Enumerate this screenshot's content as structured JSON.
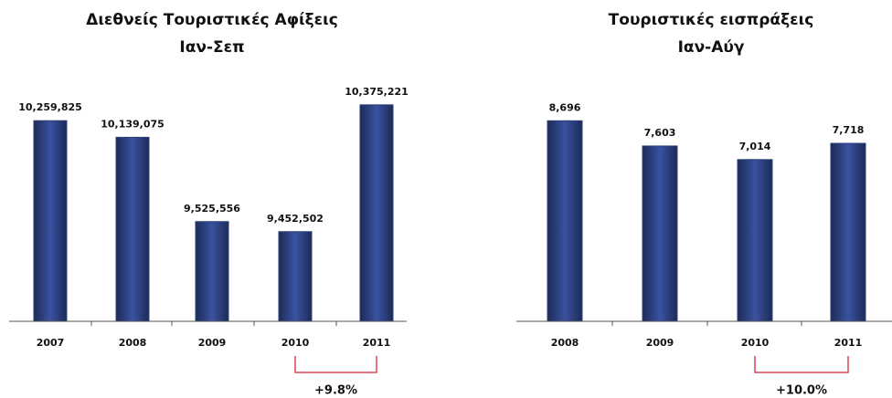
{
  "chart_data": [
    {
      "type": "bar",
      "title": "Διεθνείς Τουριστικές Αφίξεις",
      "subtitle": "Ιαν-Σεπ",
      "categories": [
        "2007",
        "2008",
        "2009",
        "2010",
        "2011"
      ],
      "values": [
        10259825,
        10139075,
        9525556,
        9452502,
        10375221
      ],
      "value_labels": [
        "10,259,825",
        "10,139,075",
        "9,525,556",
        "9,452,502",
        "10,375,221"
      ],
      "color": "#2b3f78",
      "ylim": [
        8800000,
        10600000
      ],
      "annotation": "+9.8%"
    },
    {
      "type": "bar",
      "title": "Τουριστικές εισπράξεις",
      "subtitle": "Ιαν-Αύγ",
      "categories": [
        "2008",
        "2009",
        "2010",
        "2011"
      ],
      "values": [
        8696,
        7603,
        7014,
        7718
      ],
      "value_labels": [
        "8,696",
        "7,603",
        "7,014",
        "7,718"
      ],
      "color": "#2b3f78",
      "ylim": [
        0,
        9500
      ],
      "annotation": "+10.0%"
    }
  ]
}
